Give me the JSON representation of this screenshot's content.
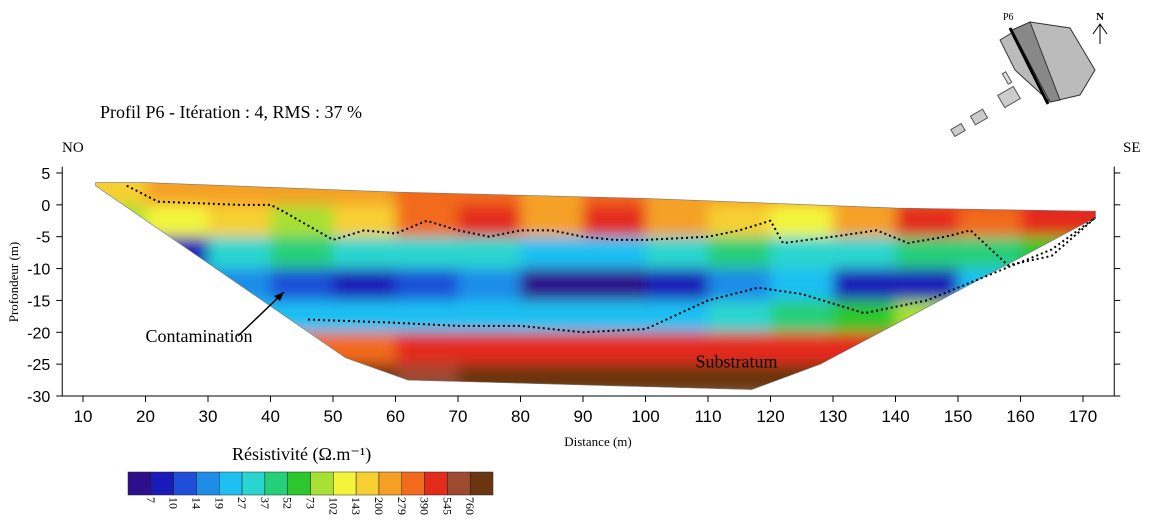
{
  "chart_data": {
    "type": "contour",
    "title": "Profil P6 - Itération : 4, RMS : 37 %",
    "left_label": "NO",
    "right_label": "SE",
    "xlabel": "Distance (m)",
    "ylabel": "Profondeur (m)",
    "annotations": [
      {
        "text": "Contamination",
        "x": 20,
        "y": -21.5
      },
      {
        "text": "Substratum",
        "x": 108,
        "y": -25.5
      }
    ],
    "xlim": [
      7,
      175
    ],
    "ylim": [
      -30,
      6
    ],
    "xticks": [
      10,
      20,
      30,
      40,
      50,
      60,
      70,
      80,
      90,
      100,
      110,
      120,
      130,
      140,
      150,
      160,
      170
    ],
    "yticks": [
      5,
      0,
      -5,
      -10,
      -15,
      -20,
      -25,
      -30
    ],
    "x": [
      15,
      25,
      35,
      45,
      55,
      65,
      75,
      85,
      95,
      105,
      115,
      125,
      135,
      145,
      155,
      165
    ],
    "y": [
      2.5,
      -2.5,
      -7.5,
      -12.5,
      -17.5,
      -22.5,
      -27.5
    ],
    "values": [
      [
        150,
        200,
        220,
        200,
        250,
        300,
        300,
        250,
        300,
        250,
        250,
        200,
        250,
        300,
        400,
        500
      ],
      [
        80,
        120,
        150,
        100,
        150,
        350,
        450,
        250,
        500,
        250,
        150,
        120,
        250,
        500,
        350,
        400
      ],
      [
        40,
        8,
        30,
        40,
        35,
        30,
        30,
        25,
        25,
        30,
        40,
        30,
        35,
        40,
        45,
        60
      ],
      [
        40,
        20,
        15,
        12,
        9,
        12,
        15,
        6,
        6,
        8,
        15,
        20,
        8,
        8,
        20,
        40
      ],
      [
        60,
        40,
        25,
        20,
        20,
        25,
        25,
        20,
        20,
        25,
        35,
        50,
        60,
        80,
        120,
        200
      ],
      [
        200,
        200,
        150,
        300,
        350,
        400,
        450,
        450,
        450,
        450,
        500,
        450,
        400,
        300,
        300,
        300
      ],
      [
        800,
        800,
        800,
        800,
        800,
        600,
        900,
        900,
        900,
        900,
        900,
        800,
        700,
        600,
        500,
        500
      ]
    ],
    "outline": {
      "x": [
        12,
        20,
        60,
        100,
        140,
        172,
        172,
        128,
        117,
        62,
        52,
        12
      ],
      "y": [
        3.5,
        3.5,
        2,
        1,
        -0.5,
        -1,
        -2,
        -25,
        -29,
        -27.5,
        -24,
        3
      ]
    },
    "contours": [
      {
        "x": [
          17,
          22,
          35,
          40,
          42,
          50,
          55,
          60,
          65,
          70,
          75,
          80,
          85,
          90,
          95,
          100,
          110,
          115,
          120,
          122,
          130,
          137,
          142,
          148,
          152,
          158,
          165,
          172
        ],
        "y": [
          3,
          0.5,
          0,
          0,
          -1,
          -5.5,
          -4,
          -4.5,
          -2.5,
          -4,
          -5,
          -4,
          -4,
          -5,
          -5.5,
          -5.5,
          -5,
          -4,
          -2.5,
          -6,
          -5,
          -4,
          -6,
          -5,
          -4,
          -9.5,
          -8,
          -2
        ]
      },
      {
        "x": [
          46,
          60,
          70,
          80,
          90,
          100,
          110,
          118,
          125,
          135,
          145,
          155,
          165,
          172
        ],
        "y": [
          -18,
          -18.5,
          -19,
          -19,
          -20,
          -19.5,
          -15,
          -13,
          -14,
          -17,
          -15,
          -11,
          -7,
          -2
        ]
      }
    ],
    "colorbar": {
      "label": "Résistivité (Ω.m⁻¹)",
      "levels": [
        7,
        10,
        14,
        19,
        27,
        37,
        52,
        73,
        102,
        143,
        200,
        279,
        390,
        545,
        760
      ],
      "colors": [
        "#2e0f8a",
        "#1a1ab8",
        "#1f4fd8",
        "#1f8ce8",
        "#1ec0f2",
        "#29d6cf",
        "#25cf7a",
        "#2bc72d",
        "#a8e033",
        "#f3f53d",
        "#f6d032",
        "#f5a025",
        "#f26a1e",
        "#e32b1a",
        "#9c4a30",
        "#6b3510"
      ]
    }
  },
  "inset": {
    "profile_label": "P6",
    "north": "N"
  }
}
